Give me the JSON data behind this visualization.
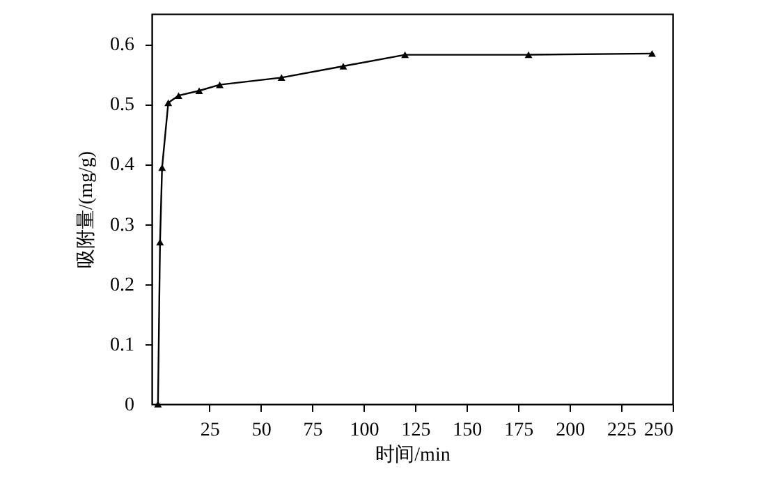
{
  "chart_data": {
    "type": "line",
    "xlabel": "时间/min",
    "ylabel": "吸附量/(mg/g)",
    "x": [
      0,
      1,
      2,
      5,
      10,
      20,
      30,
      60,
      90,
      120,
      180,
      240
    ],
    "series": [
      {
        "color": "#000000",
        "values": [
          0.0,
          0.27,
          0.394,
          0.502,
          0.514,
          0.522,
          0.532,
          0.544,
          0.563,
          0.582,
          0.582,
          0.584
        ]
      }
    ],
    "xlim": [
      -3,
      250
    ],
    "xticks": [
      25,
      50,
      75,
      100,
      125,
      150,
      175,
      200,
      225,
      250
    ],
    "ylim": [
      0,
      0.65
    ],
    "yticks": [
      {
        "value": 0,
        "label": "0"
      },
      0.1,
      0.2,
      0.3,
      0.4,
      0.5,
      0.6
    ],
    "grid": false,
    "marker": "triangle",
    "line_style": "solid"
  }
}
